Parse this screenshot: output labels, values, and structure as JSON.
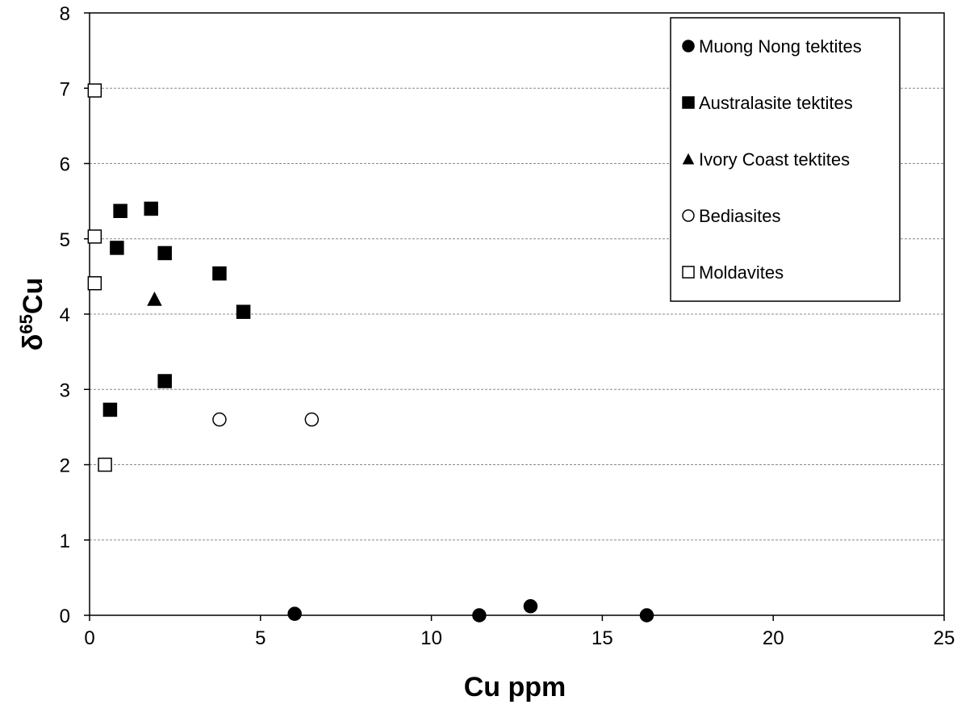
{
  "chart_data": {
    "type": "scatter",
    "xlabel": "Cu ppm",
    "ylabel": "δ65Cu",
    "ylabel_parts": {
      "base": "δ",
      "superscript": "65",
      "element": "Cu"
    },
    "xlim": [
      0,
      25
    ],
    "ylim": [
      0,
      8
    ],
    "xticks": [
      "0",
      "5",
      "10",
      "15",
      "20",
      "25"
    ],
    "yticks": [
      "0",
      "1",
      "2",
      "3",
      "4",
      "5",
      "6",
      "7",
      "8"
    ],
    "grid": "horizontal dashed",
    "legend_position": "top-right",
    "series": [
      {
        "name": "Muong Nong tektites",
        "marker": "circle",
        "fill": "#000000",
        "points": [
          [
            6.0,
            0.02
          ],
          [
            11.4,
            0.0
          ],
          [
            12.9,
            0.12
          ],
          [
            16.3,
            0.0
          ]
        ]
      },
      {
        "name": "Australasite tektites",
        "marker": "square",
        "fill": "#000000",
        "points": [
          [
            0.9,
            5.37
          ],
          [
            1.8,
            5.4
          ],
          [
            0.8,
            4.88
          ],
          [
            2.2,
            4.81
          ],
          [
            3.8,
            4.54
          ],
          [
            4.5,
            4.03
          ],
          [
            2.2,
            3.11
          ],
          [
            0.6,
            2.73
          ]
        ]
      },
      {
        "name": "Ivory Coast tektites",
        "marker": "triangle",
        "fill": "#000000",
        "points": [
          [
            1.9,
            4.2
          ]
        ]
      },
      {
        "name": "Bediasites",
        "marker": "circle",
        "fill": "#ffffff",
        "points": [
          [
            3.8,
            2.6
          ],
          [
            6.5,
            2.6
          ]
        ]
      },
      {
        "name": "Moldavites",
        "marker": "square",
        "fill": "#ffffff",
        "points": [
          [
            0.15,
            6.97
          ],
          [
            0.15,
            5.03
          ],
          [
            0.15,
            4.41
          ],
          [
            0.45,
            2.0
          ]
        ]
      }
    ]
  }
}
